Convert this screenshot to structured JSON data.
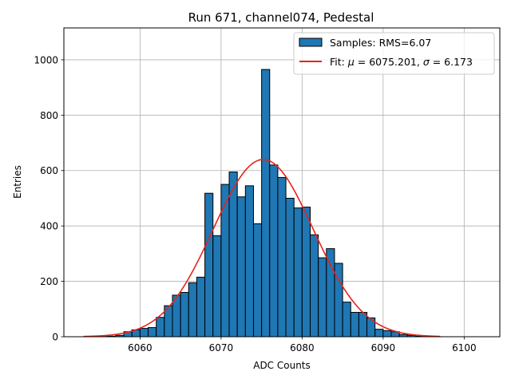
{
  "chart_data": {
    "type": "bar",
    "title": "Run 671, channel074, Pedestal",
    "xlabel": "ADC Counts",
    "ylabel": "Entries",
    "xlim": [
      6050.6,
      6104.4
    ],
    "ylim": [
      0,
      1115
    ],
    "xticks": [
      "6060",
      "6070",
      "6080",
      "6090",
      "6100"
    ],
    "yticks": [
      "0",
      "200",
      "400",
      "600",
      "800",
      "1000"
    ],
    "grid": true,
    "legend_position": "top-right",
    "histogram": {
      "name": "Samples: RMS=6.07",
      "color": "#1f77b4",
      "bin_start": 6053,
      "bin_width": 1,
      "counts": [
        0,
        0,
        1,
        2,
        5,
        18,
        25,
        30,
        33,
        70,
        112,
        150,
        160,
        195,
        215,
        518,
        365,
        550,
        595,
        505,
        545,
        408,
        965,
        620,
        575,
        500,
        465,
        468,
        368,
        285,
        318,
        265,
        125,
        88,
        88,
        68,
        27,
        22,
        18,
        8,
        5,
        2,
        1,
        1
      ]
    },
    "fit": {
      "name": "Fit: $\\mu$ = 6075.201, $\\sigma$ = 6.173",
      "legend_prefix": "Fit: ",
      "mu_symbol": "μ",
      "mu_text": " = 6075.201, ",
      "sigma_symbol": "σ",
      "sigma_text": " = 6.173",
      "color": "#e8231b",
      "mu": 6075.201,
      "sigma": 6.173,
      "amplitude": 640,
      "x_range": [
        6053,
        6097
      ]
    }
  }
}
